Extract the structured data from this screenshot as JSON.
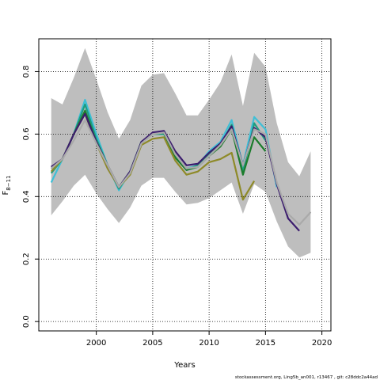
{
  "chart_data": {
    "type": "line",
    "xlabel": "Years",
    "ylabel": "F",
    "ylabel_subscript": "8−11",
    "footer": "stockassessment.org, Ling5b_an001, r13467 , git: c28ddc2a44ad",
    "xlim": [
      1994.9,
      2020.8
    ],
    "ylim": [
      -0.03,
      0.905
    ],
    "x_ticks": [
      2000,
      2005,
      2010,
      2015,
      2020
    ],
    "y_ticks": [
      0.0,
      0.2,
      0.4,
      0.6,
      0.8
    ],
    "y_tick_labels": [
      "0.0",
      "0.2",
      "0.4",
      "0.6",
      "0.8"
    ],
    "grid": true,
    "legend": "none",
    "band": {
      "color": "#bebebe",
      "x": [
        1996,
        1997,
        1998,
        1999,
        2000,
        2001,
        2002,
        2003,
        2004,
        2005,
        2006,
        2007,
        2008,
        2009,
        2010,
        2011,
        2012,
        2013,
        2014,
        2015,
        2016,
        2017,
        2018,
        2019
      ],
      "upper": [
        0.715,
        0.695,
        0.78,
        0.875,
        0.775,
        0.67,
        0.585,
        0.645,
        0.755,
        0.79,
        0.795,
        0.73,
        0.66,
        0.66,
        0.71,
        0.765,
        0.855,
        0.69,
        0.86,
        0.815,
        0.635,
        0.51,
        0.465,
        0.545
      ],
      "lower": [
        0.34,
        0.385,
        0.435,
        0.47,
        0.41,
        0.36,
        0.315,
        0.365,
        0.435,
        0.46,
        0.46,
        0.415,
        0.375,
        0.38,
        0.395,
        0.42,
        0.445,
        0.345,
        0.44,
        0.415,
        0.32,
        0.24,
        0.205,
        0.22
      ]
    },
    "series": [
      {
        "color": "#3fbfd6",
        "width": 2.2,
        "dash": "",
        "x": [
          1996,
          1997,
          1998,
          1999,
          2000,
          2001,
          2002,
          2003,
          2004,
          2005,
          2006,
          2007,
          2008,
          2009,
          2010,
          2011,
          2012,
          2013,
          2014,
          2015,
          2016
        ],
        "values": [
          0.445,
          0.52,
          0.6,
          0.71,
          0.6,
          0.5,
          0.42,
          0.48,
          0.575,
          0.6,
          0.605,
          0.53,
          0.49,
          0.5,
          0.545,
          0.575,
          0.645,
          0.5,
          0.655,
          0.615,
          0.43
        ]
      },
      {
        "color": "#1e9c80",
        "width": 2.2,
        "dash": "",
        "x": [
          1996,
          1997,
          1998,
          1999,
          2000,
          2001,
          2002,
          2003,
          2004,
          2005,
          2006,
          2007,
          2008,
          2009,
          2010,
          2011,
          2012,
          2013,
          2014,
          2015
        ],
        "values": [
          0.475,
          0.52,
          0.6,
          0.695,
          0.585,
          0.5,
          0.425,
          0.48,
          0.575,
          0.6,
          0.6,
          0.53,
          0.485,
          0.5,
          0.535,
          0.565,
          0.63,
          0.48,
          0.635,
          0.58
        ]
      },
      {
        "color": "#1c7c2c",
        "width": 2.2,
        "dash": "",
        "x": [
          1996,
          1997,
          1998,
          1999,
          2000,
          2001,
          2002,
          2003,
          2004,
          2005,
          2006,
          2007,
          2008,
          2009,
          2010,
          2011,
          2012,
          2013,
          2014,
          2015
        ],
        "values": [
          0.49,
          0.52,
          0.6,
          0.675,
          0.575,
          0.5,
          0.43,
          0.48,
          0.575,
          0.6,
          0.605,
          0.525,
          0.485,
          0.495,
          0.53,
          0.56,
          0.615,
          0.47,
          0.59,
          0.545
        ]
      },
      {
        "color": "#8e8a28",
        "width": 2.2,
        "dash": "",
        "x": [
          1996,
          1997,
          1998,
          1999,
          2000,
          2001,
          2002,
          2003,
          2004,
          2005,
          2006,
          2007,
          2008,
          2009,
          2010,
          2011,
          2012,
          2013,
          2014
        ],
        "values": [
          0.48,
          0.52,
          0.6,
          0.665,
          0.57,
          0.49,
          0.43,
          0.47,
          0.565,
          0.585,
          0.59,
          0.515,
          0.47,
          0.48,
          0.51,
          0.52,
          0.54,
          0.39,
          0.45
        ]
      },
      {
        "color": "#3b1c6e",
        "width": 2.2,
        "dash": "",
        "x": [
          1996,
          1997,
          1998,
          1999,
          2000,
          2001,
          2002,
          2003,
          2004,
          2005,
          2006,
          2007,
          2008,
          2009,
          2010,
          2011,
          2012,
          2013,
          2014,
          2015,
          2016,
          2017,
          2018
        ],
        "values": [
          0.495,
          0.52,
          0.6,
          0.665,
          0.575,
          0.5,
          0.43,
          0.48,
          0.575,
          0.605,
          0.61,
          0.545,
          0.5,
          0.505,
          0.54,
          0.57,
          0.625,
          0.5,
          0.62,
          0.59,
          0.44,
          0.33,
          0.29
        ]
      },
      {
        "color": "#000000",
        "width": 1.6,
        "dash": "6,4",
        "x": [
          1996,
          1997,
          1998,
          1999,
          2000,
          2001,
          2002,
          2003,
          2004,
          2005,
          2006,
          2007,
          2008,
          2009,
          2010,
          2011,
          2012,
          2013,
          2014,
          2015,
          2016,
          2017,
          2018,
          2019
        ],
        "values": [
          0.49,
          0.52,
          0.58,
          0.645,
          0.57,
          0.5,
          0.43,
          0.475,
          0.57,
          0.6,
          0.605,
          0.535,
          0.49,
          0.495,
          0.53,
          0.565,
          0.615,
          0.5,
          0.615,
          0.6,
          0.445,
          0.345,
          0.31,
          0.35
        ]
      },
      {
        "color": "#aaaaaa",
        "width": 2.2,
        "dash": "",
        "x": [
          1996,
          1997,
          1998,
          1999,
          2000,
          2001,
          2002,
          2003,
          2004,
          2005,
          2006,
          2007,
          2008,
          2009,
          2010,
          2011,
          2012,
          2013,
          2014,
          2015,
          2016,
          2017,
          2018,
          2019
        ],
        "values": [
          0.49,
          0.52,
          0.58,
          0.645,
          0.57,
          0.5,
          0.43,
          0.475,
          0.57,
          0.6,
          0.605,
          0.535,
          0.49,
          0.495,
          0.53,
          0.565,
          0.615,
          0.5,
          0.615,
          0.6,
          0.445,
          0.345,
          0.31,
          0.35
        ]
      }
    ]
  }
}
